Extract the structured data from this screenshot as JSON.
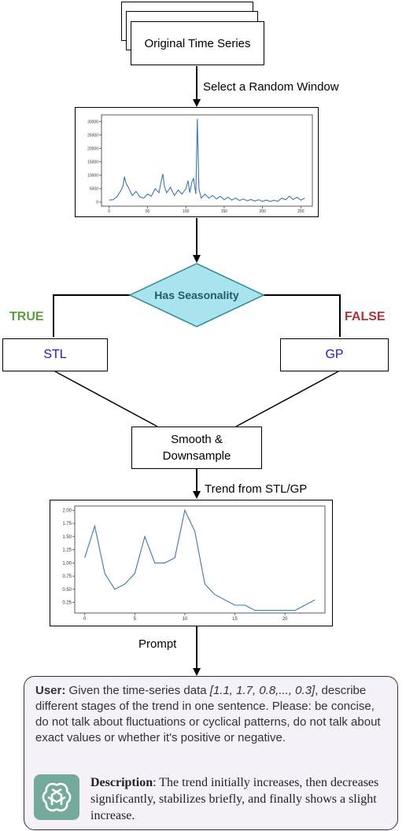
{
  "nodes": {
    "original": "Original Time Series",
    "select_window": "Select a Random Window",
    "decision": "Has Seasonality",
    "true_label": "TRUE",
    "false_label": "FALSE",
    "stl": "STL",
    "gp": "GP",
    "smooth_line1": "Smooth &",
    "smooth_line2": "Downsample",
    "trend_label": "Trend from STL/GP",
    "prompt_label": "Prompt"
  },
  "colors": {
    "decision_fill": "#a9e4ee",
    "decision_stroke": "#2b8a99",
    "true": "#5c9e3f",
    "false": "#b0333a",
    "method_text": "#1a1acc",
    "line": "#3b78b0",
    "logo_bg": "#74aa9c"
  },
  "prompt": {
    "user_label": "User:",
    "user_text_1": " Given the time-series data ",
    "user_data": "[1.1, 1.7, 0.8,..., 0.3]",
    "user_text_2": ", describe different stages of the trend in one sentence. Please: be concise, do not talk about fluctuations or cyclical patterns, do not talk about exact values or whether it's positive or negative.",
    "desc_label": "Description",
    "desc_text": ": The trend initially increases, then decreases significantly, stabilizes briefly, and finally shows a slight increase.",
    "logo_icon": "openai-logo-icon"
  },
  "chart_data": [
    {
      "type": "line",
      "x": [
        0,
        5,
        10,
        15,
        18,
        20,
        22,
        25,
        30,
        35,
        40,
        45,
        50,
        55,
        60,
        65,
        68,
        70,
        72,
        75,
        80,
        85,
        90,
        95,
        100,
        103,
        105,
        108,
        110,
        113,
        115,
        117,
        120,
        125,
        130,
        135,
        140,
        145,
        150,
        155,
        160,
        165,
        170,
        175,
        180,
        185,
        190,
        195,
        200,
        205,
        210,
        215,
        220,
        225,
        230,
        235,
        240,
        245,
        250,
        255
      ],
      "y": [
        800,
        900,
        2000,
        4200,
        6000,
        9500,
        7000,
        5500,
        2500,
        4000,
        2000,
        1500,
        3000,
        2200,
        5000,
        3500,
        8000,
        10500,
        6000,
        3500,
        5500,
        2500,
        4500,
        3000,
        5000,
        8000,
        3500,
        7500,
        9000,
        3000,
        31000,
        5000,
        1500,
        3000,
        1500,
        2500,
        1200,
        2200,
        900,
        1800,
        800,
        1500,
        600,
        1200,
        500,
        1000,
        400,
        900,
        300,
        800,
        250,
        700,
        300,
        1500,
        900,
        2200,
        1000,
        1800,
        800,
        1500
      ],
      "xticks": [
        0,
        50,
        100,
        150,
        200,
        250
      ],
      "yticks": [
        0,
        5000,
        10000,
        15000,
        20000,
        25000,
        30000
      ],
      "xlim": [
        -10,
        265
      ],
      "ylim": [
        -1500,
        32500
      ]
    },
    {
      "type": "line",
      "x": [
        0,
        1,
        2,
        3,
        4,
        5,
        6,
        7,
        8,
        9,
        10,
        11,
        12,
        13,
        14,
        15,
        16,
        17,
        18,
        19,
        20,
        21,
        22,
        23
      ],
      "y": [
        1.1,
        1.7,
        0.8,
        0.5,
        0.6,
        0.8,
        1.5,
        1.0,
        1.0,
        1.1,
        2.0,
        1.6,
        0.6,
        0.4,
        0.3,
        0.2,
        0.2,
        0.1,
        0.1,
        0.1,
        0.1,
        0.1,
        0.2,
        0.3
      ],
      "xticks": [
        0,
        5,
        10,
        15,
        20
      ],
      "yticks": [
        0.25,
        0.5,
        0.75,
        1.0,
        1.25,
        1.5,
        1.75,
        2.0
      ],
      "ytick_labels": [
        "0.25",
        "0.50",
        "0.75",
        "1.00",
        "1.25",
        "1.50",
        "1.75",
        "2.00"
      ],
      "xlim": [
        -1,
        24
      ],
      "ylim": [
        0.05,
        2.08
      ]
    }
  ]
}
